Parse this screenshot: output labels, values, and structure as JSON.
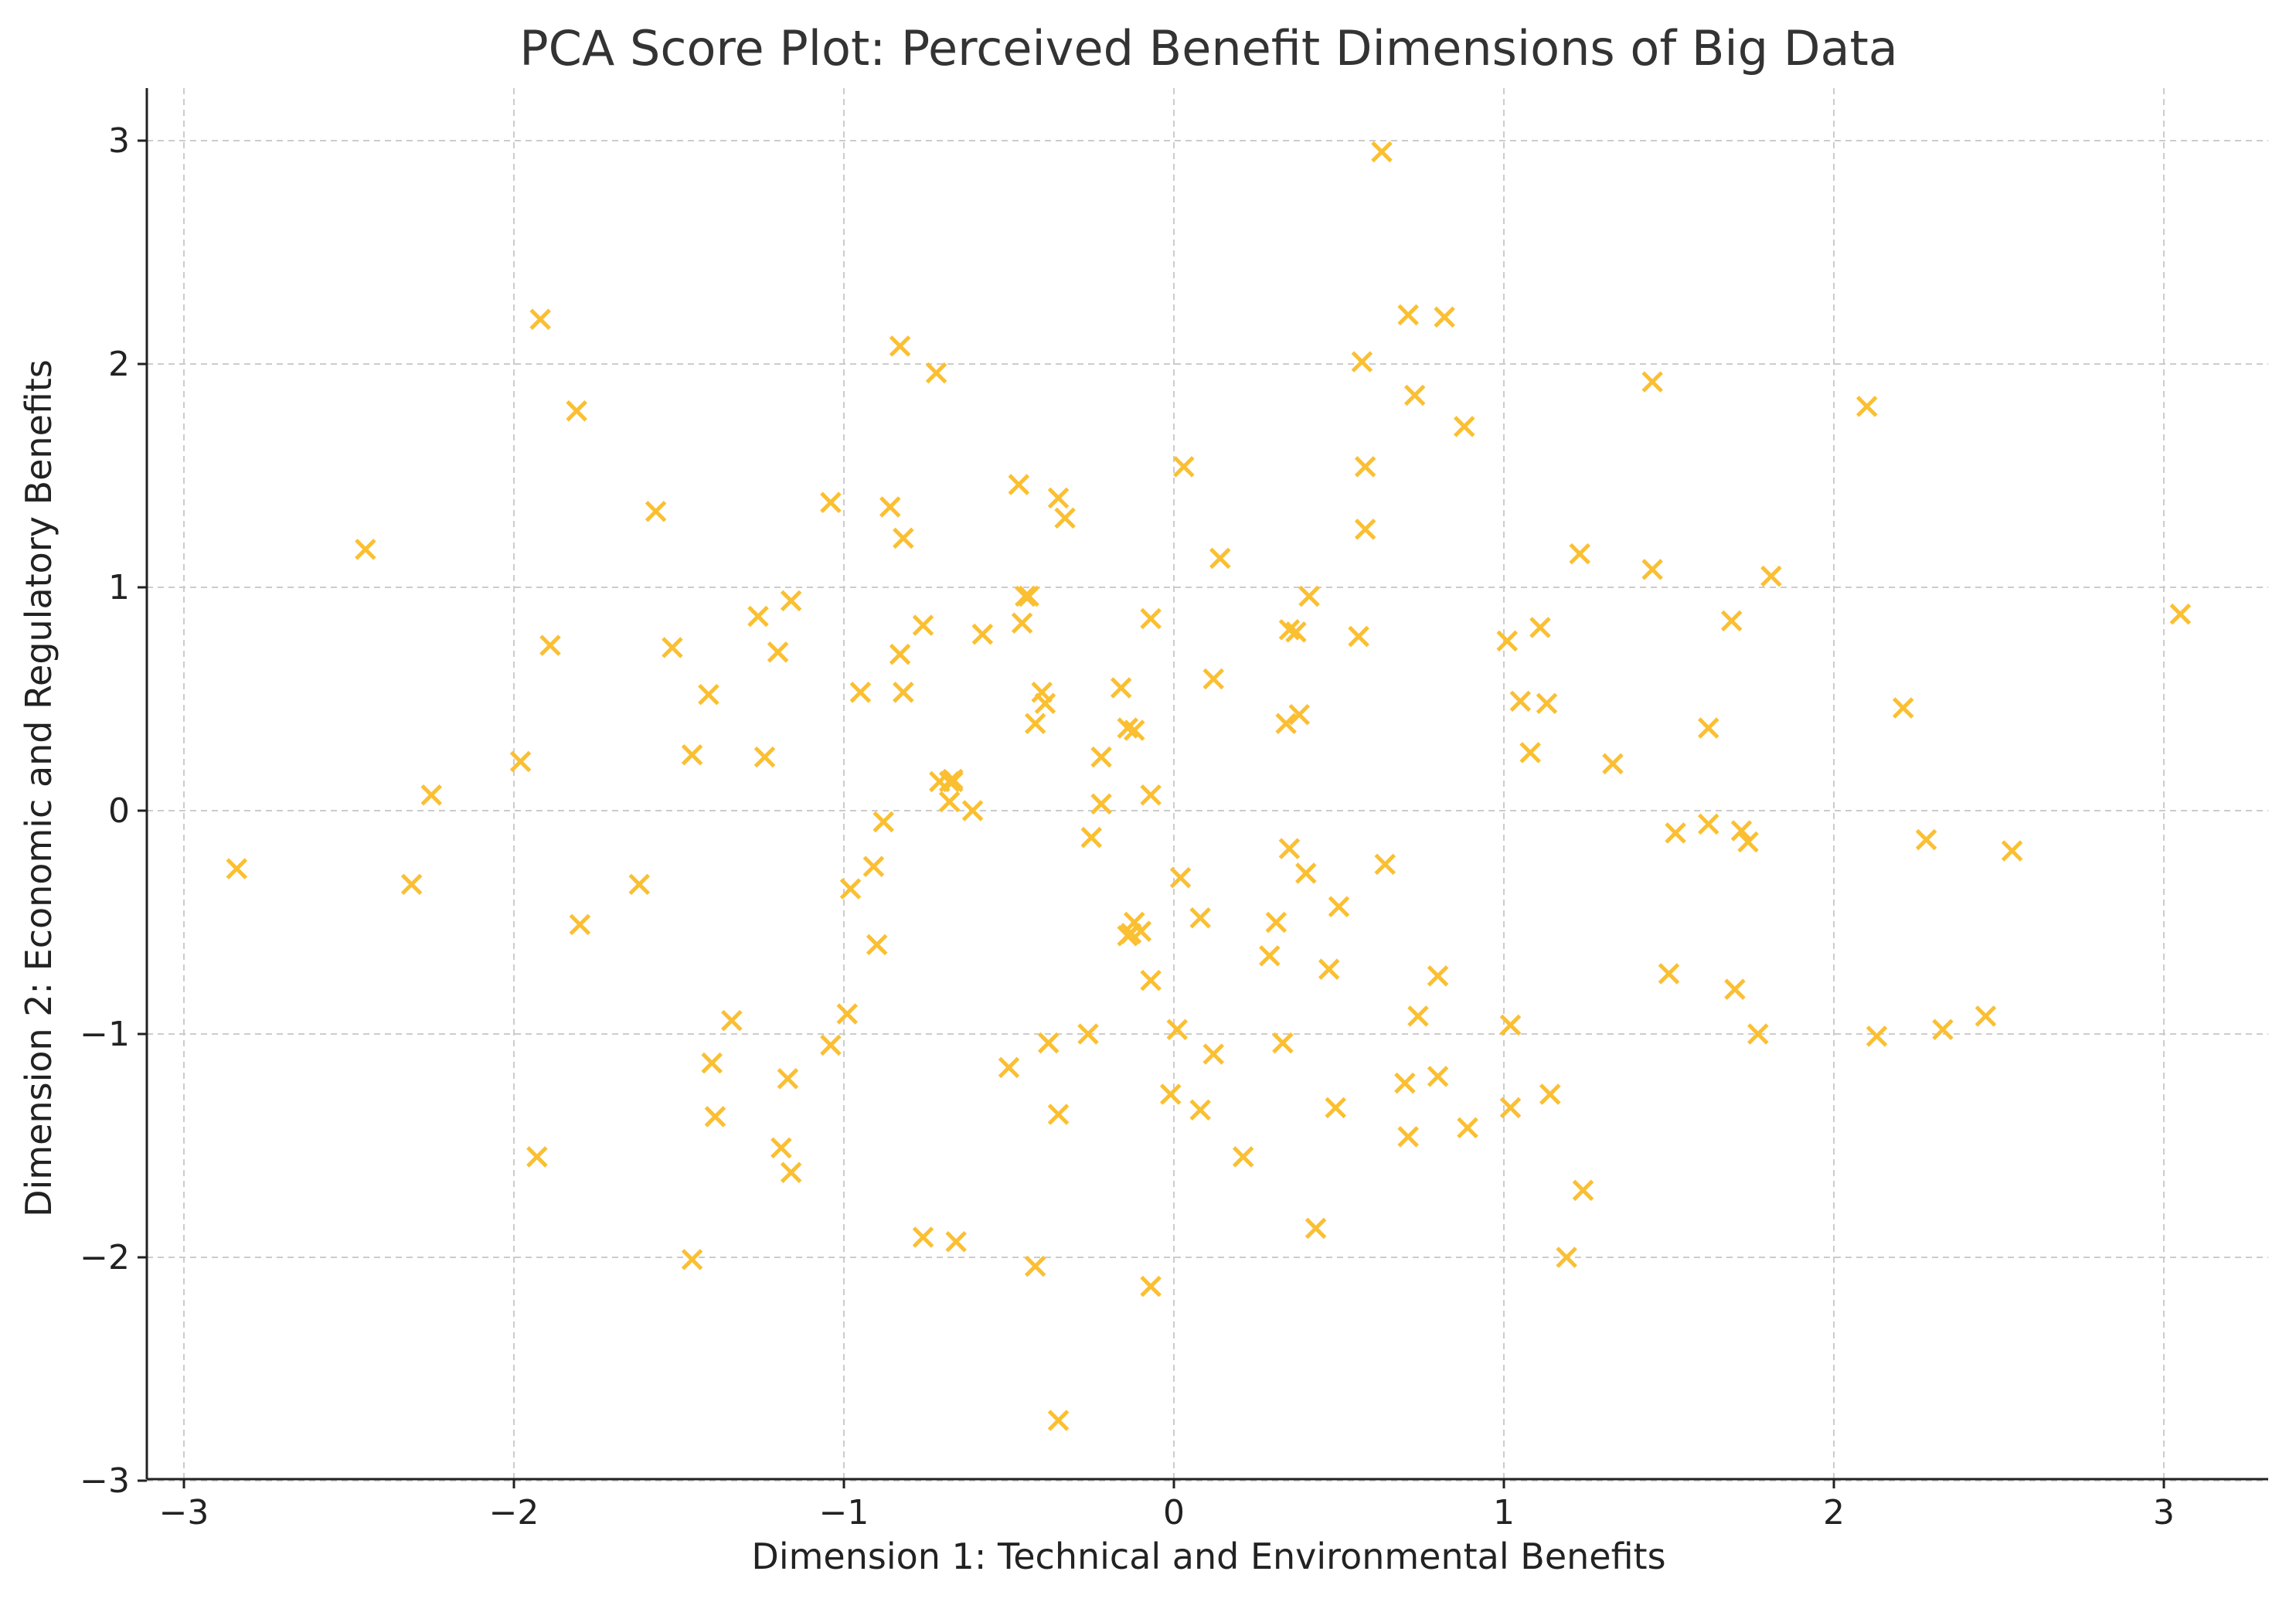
{
  "chart_data": {
    "type": "scatter",
    "title": "PCA Score Plot: Perceived Benefit Dimensions of Big Data",
    "xlabel": "Dimension 1: Technical and Environmental Benefits",
    "ylabel": "Dimension 2: Economic and Regulatory Benefits",
    "xlim": [
      -3.1,
      3.35
    ],
    "ylim": [
      -3.05,
      3.25
    ],
    "xticks": [
      -3,
      -2,
      -1,
      0,
      1,
      2,
      3
    ],
    "yticks": [
      -3,
      -2,
      -1,
      0,
      1,
      2,
      3
    ],
    "xtick_labels": [
      "−3",
      "−2",
      "−1",
      "0",
      "1",
      "2",
      "3"
    ],
    "ytick_labels": [
      "−3",
      "−2",
      "−1",
      "0",
      "1",
      "2",
      "3"
    ],
    "grid": true,
    "marker": "x",
    "color": "#FBBF32",
    "series": [
      {
        "name": "scores",
        "x": [
          -2.84,
          -2.45,
          -2.25,
          -2.31,
          -1.98,
          -1.92,
          -1.89,
          -1.81,
          -1.8,
          -1.93,
          -1.62,
          -1.57,
          -1.52,
          -1.46,
          -1.41,
          -1.46,
          -1.4,
          -1.39,
          -1.34,
          -1.26,
          -1.24,
          -1.2,
          -1.16,
          -1.19,
          -1.16,
          -1.17,
          -1.04,
          -1.04,
          -0.98,
          -0.99,
          -0.95,
          -0.91,
          -0.9,
          -0.88,
          -0.86,
          -0.83,
          -0.82,
          -0.83,
          -0.82,
          -0.76,
          -0.76,
          -0.72,
          -0.71,
          -0.68,
          -0.67,
          -0.68,
          -0.66,
          -0.67,
          -0.61,
          -0.58,
          -0.5,
          -0.47,
          -0.46,
          -0.44,
          -0.45,
          -0.42,
          -0.42,
          -0.4,
          -0.39,
          -0.38,
          -0.35,
          -0.35,
          -0.33,
          -0.35,
          -0.26,
          -0.25,
          -0.22,
          -0.22,
          -0.16,
          -0.14,
          -0.12,
          -0.13,
          -0.14,
          -0.12,
          -0.1,
          -0.07,
          -0.07,
          -0.07,
          -0.07,
          -0.01,
          0.01,
          0.02,
          0.03,
          0.08,
          0.08,
          0.12,
          0.12,
          0.14,
          0.21,
          0.29,
          0.31,
          0.33,
          0.34,
          0.35,
          0.35,
          0.37,
          0.38,
          0.4,
          0.41,
          0.43,
          0.47,
          0.49,
          0.5,
          0.56,
          0.57,
          0.58,
          0.58,
          0.63,
          0.64,
          0.71,
          0.7,
          0.71,
          0.73,
          0.74,
          0.8,
          0.8,
          0.82,
          0.88,
          0.89,
          1.01,
          1.02,
          1.02,
          1.05,
          1.08,
          1.11,
          1.13,
          1.14,
          1.19,
          1.23,
          1.24,
          1.33,
          1.45,
          1.45,
          1.5,
          1.52,
          1.62,
          1.62,
          1.69,
          1.7,
          1.72,
          1.74,
          1.77,
          1.81,
          2.1,
          2.13,
          2.21,
          2.28,
          2.33,
          2.46,
          2.54,
          3.05
        ],
        "y": [
          -0.26,
          1.17,
          0.07,
          -0.33,
          0.22,
          2.2,
          0.74,
          1.79,
          -0.51,
          -1.55,
          -0.33,
          1.34,
          0.73,
          0.25,
          0.52,
          -2.01,
          -1.13,
          -1.37,
          -0.94,
          0.87,
          0.24,
          0.71,
          0.94,
          -1.51,
          -1.62,
          -1.2,
          1.38,
          -1.05,
          -0.35,
          -0.91,
          0.53,
          -0.25,
          -0.6,
          -0.05,
          1.36,
          2.08,
          1.22,
          0.7,
          0.53,
          0.83,
          -1.91,
          1.96,
          0.13,
          0.13,
          0.14,
          0.04,
          -1.93,
          0.13,
          0.0,
          0.79,
          -1.15,
          1.46,
          0.84,
          0.96,
          0.96,
          0.39,
          -2.04,
          0.53,
          0.48,
          -1.04,
          1.4,
          -2.73,
          1.31,
          -1.36,
          -1.0,
          -0.12,
          0.24,
          0.03,
          0.55,
          0.37,
          -0.5,
          -0.55,
          -0.56,
          0.36,
          -0.54,
          0.86,
          0.07,
          -0.76,
          -2.13,
          -1.27,
          -0.98,
          -0.3,
          1.54,
          -0.48,
          -1.34,
          -1.09,
          0.59,
          1.13,
          -1.55,
          -0.65,
          -0.5,
          -1.04,
          0.39,
          0.81,
          -0.17,
          0.8,
          0.43,
          -0.28,
          0.96,
          -1.87,
          -0.71,
          -1.33,
          -0.43,
          0.78,
          2.01,
          1.54,
          1.26,
          2.95,
          -0.24,
          2.22,
          -1.22,
          -1.46,
          1.86,
          -0.92,
          -0.74,
          -1.19,
          2.21,
          1.72,
          -1.42,
          0.76,
          -0.96,
          -1.33,
          0.49,
          0.26,
          0.82,
          0.48,
          -1.27,
          -2.0,
          1.15,
          -1.7,
          0.21,
          1.08,
          1.92,
          -0.73,
          -0.1,
          0.37,
          -0.06,
          0.85,
          -0.8,
          -0.09,
          -0.14,
          -1.0,
          1.05,
          1.81,
          -1.01,
          0.46,
          -0.13,
          -0.98,
          -0.92,
          -0.18,
          0.88
        ]
      }
    ]
  }
}
